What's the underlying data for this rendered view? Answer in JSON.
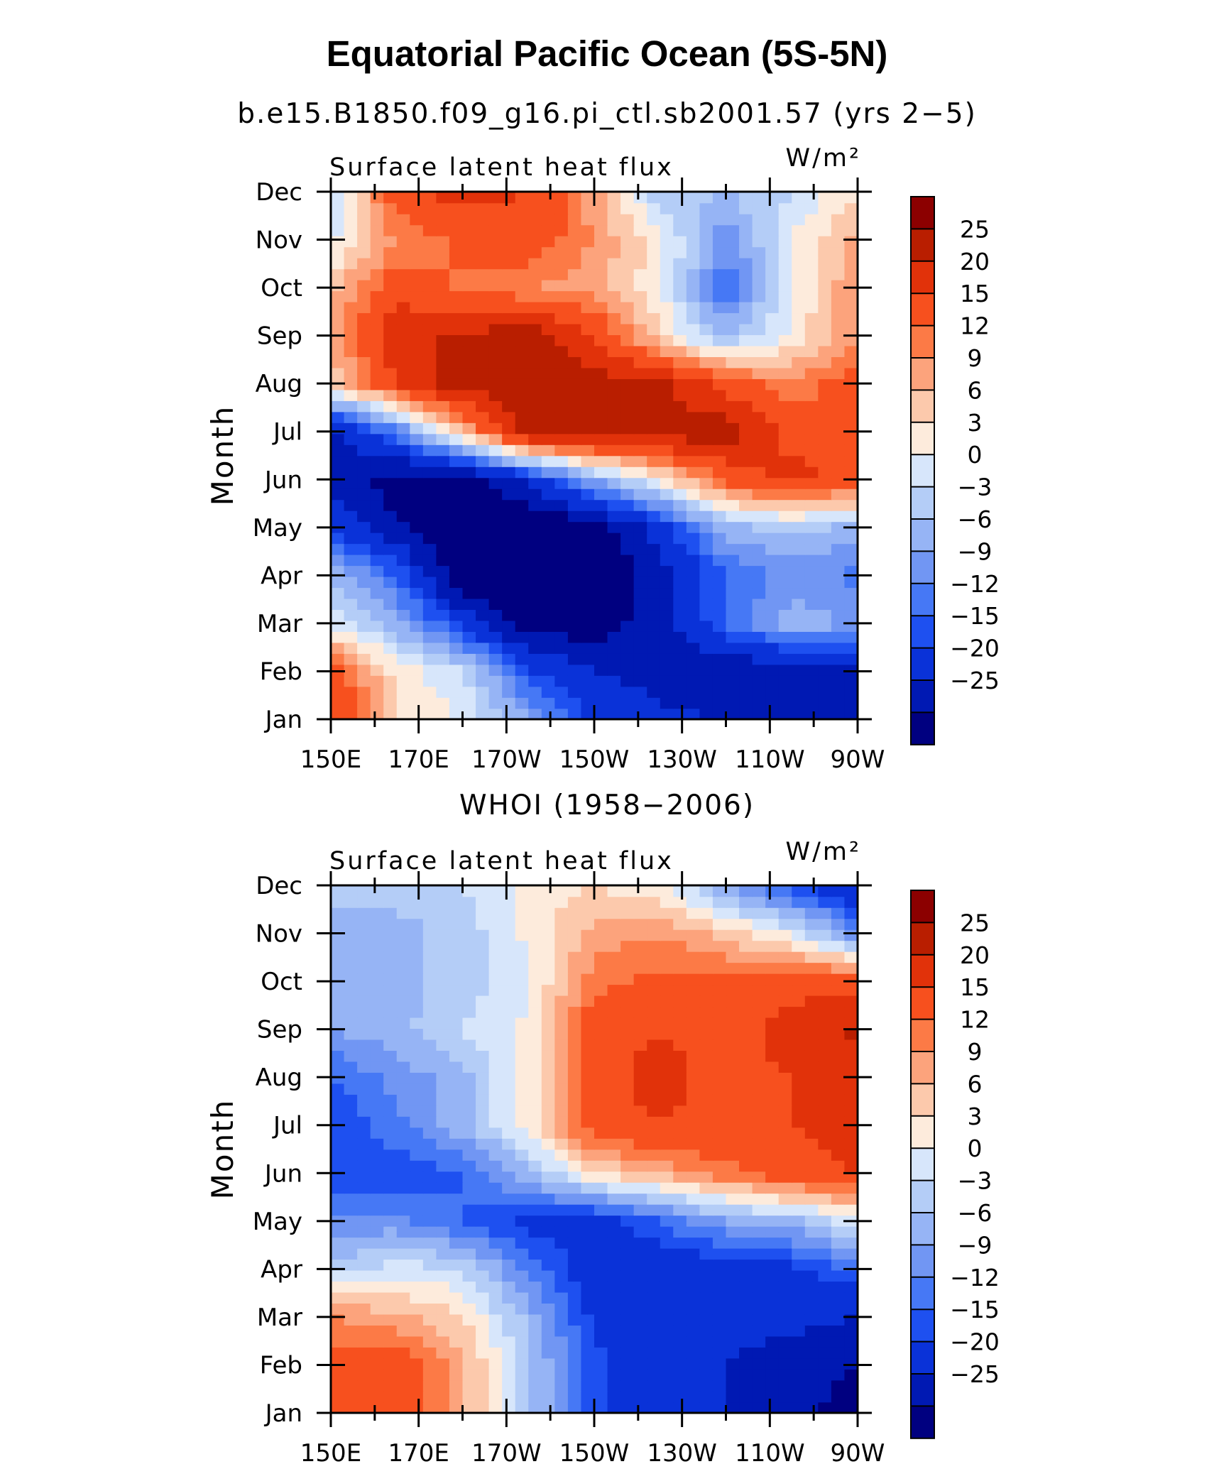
{
  "title": "Equatorial Pacific Ocean (5S-5N)",
  "colors": [
    "#000080",
    "#0019b3",
    "#0a32d8",
    "#1e50f0",
    "#4678f5",
    "#7196f3",
    "#96b4f5",
    "#b4cdf7",
    "#d7e6fb",
    "#fdebdc",
    "#fcc9ac",
    "#fca37c",
    "#fc7a46",
    "#f7501e",
    "#e1320a",
    "#b91e00",
    "#8c0000"
  ],
  "chart_data": [
    {
      "type": "heatmap",
      "subtitle": "b.e15.B1850.f09_g16.pi_ctl.sb2001.57 (yrs 2−5)",
      "panel_label": "Surface latent heat flux",
      "units": "W/m²",
      "ylabel": "Month",
      "x_ticks": [
        "150E",
        "170E",
        "170W",
        "150W",
        "130W",
        "110W",
        "90W"
      ],
      "y_ticks": [
        "Jan",
        "Feb",
        "Mar",
        "Apr",
        "May",
        "Jun",
        "Jul",
        "Aug",
        "Sep",
        "Oct",
        "Nov",
        "Dec"
      ],
      "colorbar_labels": [
        "25",
        "20",
        "15",
        "12",
        "9",
        "6",
        "3",
        "0",
        "−3",
        "−6",
        "−9",
        "−12",
        "−15",
        "−20",
        "−25"
      ],
      "x": [
        150,
        165,
        180,
        195,
        210,
        225,
        240,
        255,
        270
      ],
      "values": [
        [
          21,
          6,
          3,
          -6,
          -16,
          -19,
          -20,
          -21,
          -21
        ],
        [
          18,
          5,
          0,
          -14,
          -20,
          -22,
          -24,
          -24,
          -23
        ],
        [
          2,
          -5,
          -16,
          -28,
          -28,
          -22,
          -12,
          -4,
          -6
        ],
        [
          -3,
          -12,
          -30,
          -30,
          -30,
          -22,
          -12,
          -8,
          -10
        ],
        [
          -15,
          -24,
          -30,
          -30,
          -28,
          -18,
          -4,
          -2,
          -4
        ],
        [
          -22,
          -28,
          -28,
          -20,
          -6,
          4,
          16,
          22,
          17
        ],
        [
          -22,
          -10,
          8,
          28,
          28,
          28,
          28,
          18,
          20
        ],
        [
          6,
          20,
          28,
          28,
          28,
          26,
          18,
          12,
          18
        ],
        [
          10,
          24,
          26,
          28,
          20,
          6,
          -4,
          4,
          12
        ],
        [
          8,
          18,
          14,
          12,
          10,
          4,
          -12,
          3,
          12
        ],
        [
          2,
          12,
          16,
          18,
          12,
          4,
          -8,
          3,
          10
        ],
        [
          0,
          18,
          22,
          20,
          10,
          -2,
          -3,
          0,
          6
        ]
      ]
    },
    {
      "type": "heatmap",
      "subtitle": "WHOI (1958−2006)",
      "panel_label": "Surface latent heat flux",
      "units": "W/m²",
      "ylabel": "Month",
      "x_ticks": [
        "150E",
        "170E",
        "170W",
        "150W",
        "130W",
        "110W",
        "90W"
      ],
      "y_ticks": [
        "Jan",
        "Feb",
        "Mar",
        "Apr",
        "May",
        "Jun",
        "Jul",
        "Aug",
        "Sep",
        "Oct",
        "Nov",
        "Dec"
      ],
      "colorbar_labels": [
        "25",
        "20",
        "15",
        "12",
        "9",
        "6",
        "3",
        "0",
        "−3",
        "−6",
        "−9",
        "−12",
        "−15",
        "−20",
        "−25"
      ],
      "x": [
        150,
        165,
        180,
        195,
        210,
        225,
        240,
        255,
        270
      ],
      "values": [
        [
          16,
          18,
          10,
          -2,
          -14,
          -18,
          -20,
          -23,
          -28
        ],
        [
          16,
          18,
          10,
          -2,
          -14,
          -18,
          -20,
          -23,
          -25
        ],
        [
          12,
          10,
          6,
          -4,
          -16,
          -18,
          -18,
          -18,
          -20
        ],
        [
          -2,
          2,
          0,
          -10,
          -18,
          -18,
          -18,
          -16,
          -12
        ],
        [
          -8,
          -8,
          -12,
          -16,
          -18,
          -12,
          -6,
          -4,
          2
        ],
        [
          -14,
          -14,
          -12,
          -4,
          6,
          10,
          14,
          18,
          20
        ],
        [
          -15,
          -10,
          -4,
          4,
          18,
          20,
          18,
          20,
          22
        ],
        [
          -12,
          -8,
          -4,
          4,
          18,
          22,
          18,
          20,
          24
        ],
        [
          -6,
          -4,
          0,
          4,
          18,
          20,
          18,
          22,
          26
        ],
        [
          -3,
          -4,
          -2,
          2,
          14,
          16,
          16,
          18,
          18
        ],
        [
          -4,
          -4,
          -2,
          4,
          10,
          12,
          8,
          2,
          -8
        ],
        [
          -2,
          -2,
          0,
          4,
          6,
          4,
          -6,
          -14,
          -20
        ]
      ]
    }
  ]
}
